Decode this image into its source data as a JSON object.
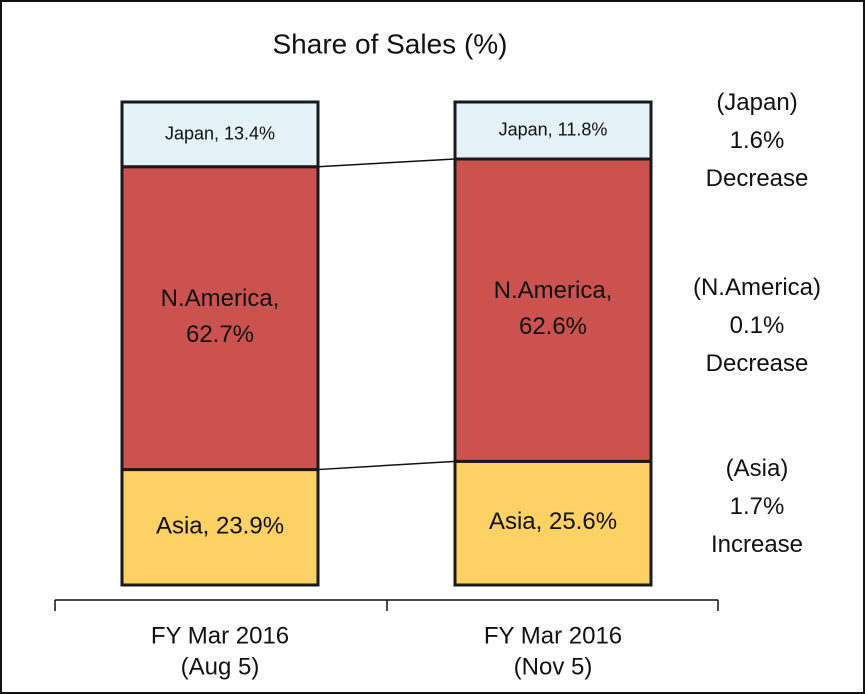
{
  "chart_data": {
    "type": "stacked-bar",
    "title": "Share of Sales (%)",
    "categories": [
      "FY Mar 2016\n(Aug 5)",
      "FY Mar 2016\n(Nov 5)"
    ],
    "ylim": [
      0,
      100
    ],
    "series": [
      {
        "name": "Asia",
        "color": "#fdd164",
        "label_color": "#111111",
        "values": [
          23.9,
          25.6
        ],
        "value_labels": [
          "Asia, 23.9%",
          "Asia, 25.6%"
        ]
      },
      {
        "name": "N.America",
        "color": "#cc524f",
        "label_color": "#ffffff",
        "values": [
          62.7,
          62.6
        ],
        "value_labels": [
          "N.America,\n62.7%",
          "N.America,\n62.6%"
        ]
      },
      {
        "name": "Japan",
        "color": "#e4f3f7",
        "label_color": "#111111",
        "values": [
          13.4,
          11.8
        ],
        "value_labels": [
          "Japan, 13.4%",
          "Japan, 11.8%"
        ]
      }
    ],
    "annotations": [
      "(Asia)\n1.7%\nIncrease",
      "(N.America)\n0.1%\nDecrease",
      "(Japan)\n1.6%\nDecrease"
    ]
  }
}
